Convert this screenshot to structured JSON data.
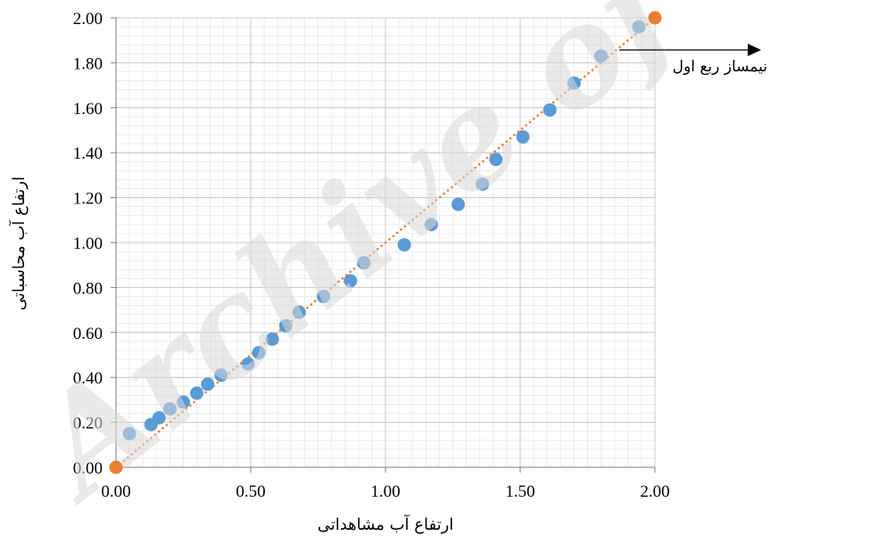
{
  "chart_data": {
    "type": "scatter",
    "xlabel": "ارتفاع آب مشاهداتی",
    "ylabel": "ارتفاع آب محاسباتی",
    "xlim": [
      0,
      2
    ],
    "ylim": [
      0,
      2
    ],
    "x_ticks": [
      "0.00",
      "0.50",
      "1.00",
      "1.50",
      "2.00"
    ],
    "y_ticks": [
      "0.00",
      "0.20",
      "0.40",
      "0.60",
      "0.80",
      "1.00",
      "1.20",
      "1.40",
      "1.60",
      "1.80",
      "2.00"
    ],
    "grid": true,
    "series": [
      {
        "values_x": [
          0.05,
          0.13,
          0.16,
          0.2,
          0.25,
          0.3,
          0.34,
          0.39,
          0.49,
          0.53,
          0.58,
          0.63,
          0.68,
          0.77,
          0.87,
          0.92,
          1.07,
          1.17,
          1.27,
          1.36,
          1.41,
          1.51,
          1.61,
          1.7,
          1.8,
          1.94
        ],
        "values_y": [
          0.15,
          0.19,
          0.22,
          0.26,
          0.29,
          0.33,
          0.37,
          0.41,
          0.46,
          0.51,
          0.57,
          0.63,
          0.69,
          0.76,
          0.83,
          0.91,
          0.99,
          1.08,
          1.17,
          1.26,
          1.37,
          1.47,
          1.59,
          1.71,
          1.83,
          1.96
        ],
        "color": "#5B9BD5"
      },
      {
        "values_x": [
          0,
          2
        ],
        "values_y": [
          0,
          2
        ],
        "color": "#ED7D31",
        "style": "dotted-line"
      }
    ],
    "annotation": "نیمساز ربع اول",
    "watermark": "Archive of"
  }
}
